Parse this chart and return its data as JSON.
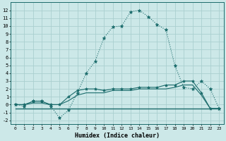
{
  "xlabel": "Humidex (Indice chaleur)",
  "bg_color": "#cce8e8",
  "line_color": "#1a6b6b",
  "grid_color": "#aacfcf",
  "xlim": [
    -0.5,
    23.5
  ],
  "ylim": [
    -2.5,
    13.0
  ],
  "xticks": [
    0,
    1,
    2,
    3,
    4,
    5,
    6,
    7,
    8,
    9,
    10,
    11,
    12,
    13,
    14,
    15,
    16,
    17,
    18,
    19,
    20,
    21,
    22,
    23
  ],
  "yticks": [
    -2,
    -1,
    0,
    1,
    2,
    3,
    4,
    5,
    6,
    7,
    8,
    9,
    10,
    11,
    12
  ],
  "line1_x": [
    0,
    1,
    2,
    3,
    4,
    5,
    6,
    7,
    8,
    9,
    10,
    11,
    12,
    13,
    14,
    15,
    16,
    17,
    18,
    19,
    20,
    21,
    22,
    23
  ],
  "line1_y": [
    0,
    -0.2,
    0.5,
    0.5,
    -0.2,
    -1.7,
    -0.7,
    1.5,
    4.0,
    5.5,
    8.5,
    9.9,
    10.0,
    11.8,
    12.0,
    11.2,
    10.2,
    9.5,
    5.0,
    2.2,
    2.0,
    3.0,
    2.0,
    -0.5
  ],
  "line2_x": [
    0,
    1,
    2,
    3,
    4,
    5,
    6,
    7,
    8,
    9,
    10,
    11,
    12,
    13,
    14,
    15,
    16,
    17,
    18,
    19,
    20,
    21,
    22,
    23
  ],
  "line2_y": [
    0,
    0,
    0.4,
    0.4,
    0,
    0,
    1.0,
    1.8,
    2.0,
    2.0,
    1.8,
    2.0,
    2.0,
    2.0,
    2.2,
    2.2,
    2.2,
    2.5,
    2.5,
    3.0,
    3.0,
    1.5,
    -0.5,
    -0.5
  ],
  "line3_x": [
    0,
    1,
    2,
    3,
    4,
    5,
    6,
    7,
    8,
    9,
    10,
    11,
    12,
    13,
    14,
    15,
    16,
    17,
    18,
    19,
    20,
    21,
    22,
    23
  ],
  "line3_y": [
    0,
    0,
    0.2,
    0.2,
    0,
    0,
    0.5,
    1.2,
    1.5,
    1.5,
    1.5,
    1.8,
    1.8,
    1.8,
    2.0,
    2.0,
    2.0,
    2.0,
    2.2,
    2.5,
    2.5,
    1.2,
    -0.5,
    -0.5
  ],
  "line4_x": [
    0,
    23
  ],
  "line4_y": [
    -0.5,
    -0.5
  ]
}
